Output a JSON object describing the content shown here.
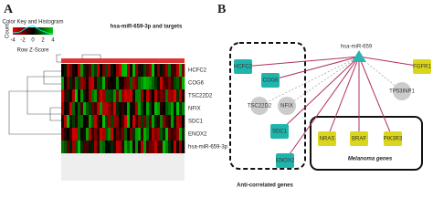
{
  "panel_a": {
    "label": "A",
    "title": "hsa-miR-659-3p and targets",
    "color_key": {
      "title": "Color Key and Histogram",
      "axis_label": "Count",
      "ticks": [
        -4,
        -2,
        0,
        2,
        4
      ],
      "scale_label": "Row Z-Score"
    },
    "rows": [
      "HCFC2",
      "COG6",
      "TSC22D2",
      "NFIX",
      "SDC1",
      "ENOX2",
      "hsa-miR-659-3p"
    ]
  },
  "panel_b": {
    "label": "B",
    "hub": "hsa-miR-659",
    "anti_correlated": {
      "title": "Anti-correlated genes",
      "nodes": [
        "HCFC2",
        "COG6",
        "TSC22D2",
        "NFIX",
        "SDC1",
        "ENOX2"
      ]
    },
    "melanoma": {
      "title": "Melanoma genes",
      "nodes": [
        "NRAS",
        "BRAF",
        "PIK3R3"
      ]
    },
    "other_nodes": [
      "FGFR1",
      "TP53INP1"
    ]
  }
}
